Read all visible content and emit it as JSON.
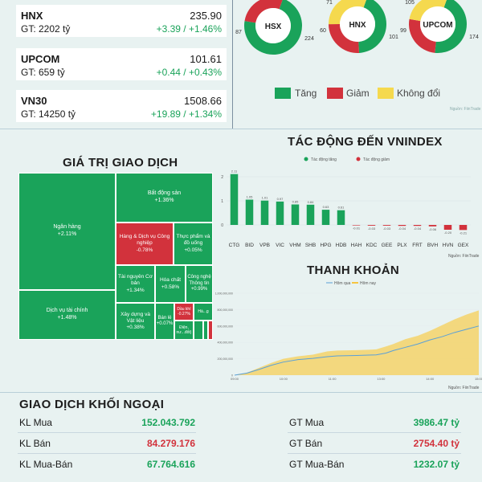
{
  "indices": [
    {
      "name": "HNX",
      "gt": "GT: 2202 tỷ",
      "value": "235.90",
      "change": "+3.39 / +1.46%"
    },
    {
      "name": "UPCOM",
      "gt": "GT: 659 tỷ",
      "value": "101.61",
      "change": "+0.44 / +0.43%"
    },
    {
      "name": "VN30",
      "gt": "GT: 14250 tỷ",
      "value": "1508.66",
      "change": "+19.89 / +1.34%"
    }
  ],
  "donuts": [
    {
      "label": "HSX",
      "up": 224,
      "down": 87,
      "flat": 0,
      "up_label": "224",
      "down_label": "87",
      "flat_label": ""
    },
    {
      "label": "HNX",
      "up": 101,
      "down": 60,
      "flat": 71,
      "up_label": "101",
      "down_label": "60",
      "flat_label": "71"
    },
    {
      "label": "UPCOM",
      "up": 174,
      "down": 99,
      "flat": 105,
      "up_label": "174",
      "down_label": "99",
      "flat_label": "105"
    }
  ],
  "donut_legend": {
    "up": "Tăng",
    "down": "Giảm",
    "flat": "Không đổi"
  },
  "source_text": "Nguồn: FiinTrade",
  "colors": {
    "up": "#1aa35a",
    "down": "#d2323c",
    "flat": "#f5d94e",
    "bg": "#e8f2f1"
  },
  "treemap": {
    "title": "GIÁ TRỊ GIAO DỊCH",
    "cells": [
      {
        "name": "Ngân hàng",
        "change": "+2.11%",
        "color": "#1aa35a"
      },
      {
        "name": "Dịch vụ tài chính",
        "change": "+1.48%",
        "color": "#1aa35a"
      },
      {
        "name": "Bất động sản",
        "change": "+1.36%",
        "color": "#1aa35a"
      },
      {
        "name": "Hàng & Dịch vụ Công nghiệp",
        "change": "-0.78%",
        "color": "#d2323c"
      },
      {
        "name": "Thực phẩm và đồ uống",
        "change": "+0.05%",
        "color": "#1aa35a"
      },
      {
        "name": "Tài nguyên Cơ bản",
        "change": "+1.34%",
        "color": "#1aa35a"
      },
      {
        "name": "Hóa chất",
        "change": "+0.58%",
        "color": "#1aa35a"
      },
      {
        "name": "Công nghệ Thông tin",
        "change": "+0.99%",
        "color": "#1aa35a"
      },
      {
        "name": "Xây dựng và Vật liệu",
        "change": "+0.38%",
        "color": "#1aa35a"
      },
      {
        "name": "Bán lẻ",
        "change": "+0.07%",
        "color": "#1aa35a"
      },
      {
        "name": "Dầu khí",
        "change": "-0.27%",
        "color": "#d2323c"
      },
      {
        "name": "Hà...g",
        "change": "",
        "color": "#1aa35a"
      },
      {
        "name": "Điện, nư...đốt)",
        "change": "",
        "color": "#1aa35a"
      },
      {
        "name": "",
        "change": "",
        "color": "#1aa35a"
      },
      {
        "name": "",
        "change": "",
        "color": "#1aa35a"
      },
      {
        "name": "",
        "change": "",
        "color": "#d2323c"
      }
    ]
  },
  "chart_data": [
    {
      "type": "bar",
      "title": "TÁC ĐỘNG ĐẾN VNINDEX",
      "legend": [
        "Tác động tăng",
        "Tác động giảm"
      ],
      "categories": [
        "CTG",
        "BID",
        "VPB",
        "VIC",
        "VHM",
        "SHB",
        "HPG",
        "HDB",
        "HAH",
        "KDC",
        "GEE",
        "PLX",
        "FRT",
        "BVH",
        "HVN",
        "GEX"
      ],
      "values": [
        2.11,
        1.05,
        1.01,
        0.97,
        0.85,
        0.84,
        0.63,
        0.61,
        -0.01,
        -0.03,
        -0.03,
        -0.04,
        -0.04,
        -0.06,
        -0.2,
        -0.21
      ],
      "value_labels": [
        "2.11",
        "1.05",
        "1.01",
        "0.97",
        "0.85",
        "0.84",
        "0.63",
        "0.61",
        "-0.01",
        "-0.03",
        "-0.03",
        "-0.04",
        "-0.04",
        "-0.06",
        "-0.20",
        "-0.21"
      ],
      "yticks": [
        "0",
        "1",
        "2"
      ],
      "ylim": [
        -0.4,
        2.3
      ]
    },
    {
      "type": "area",
      "title": "THANH KHOẢN",
      "legend": [
        "Hôm qua",
        "Hôm nay"
      ],
      "xticks": [
        "09:00",
        "10:00",
        "11:00",
        "13:00",
        "14:00",
        "15:00"
      ],
      "yticks": [
        "0",
        "200,000,000",
        "400,000,000",
        "600,000,000",
        "800,000,000",
        "1,000,000,000"
      ],
      "ylim": [
        0,
        1000000000
      ],
      "today": [
        [
          0,
          0
        ],
        [
          0.05,
          30000000
        ],
        [
          0.1,
          90000000
        ],
        [
          0.15,
          150000000
        ],
        [
          0.2,
          200000000
        ],
        [
          0.26,
          230000000
        ],
        [
          0.32,
          250000000
        ],
        [
          0.38,
          290000000
        ],
        [
          0.42,
          300000000
        ],
        [
          0.5,
          305000000
        ],
        [
          0.55,
          310000000
        ],
        [
          0.58,
          315000000
        ],
        [
          0.62,
          350000000
        ],
        [
          0.65,
          380000000
        ],
        [
          0.7,
          440000000
        ],
        [
          0.75,
          480000000
        ],
        [
          0.8,
          540000000
        ],
        [
          0.85,
          610000000
        ],
        [
          0.9,
          680000000
        ],
        [
          0.95,
          740000000
        ],
        [
          1.0,
          790000000
        ]
      ],
      "yesterday": [
        [
          0,
          0
        ],
        [
          0.05,
          25000000
        ],
        [
          0.1,
          70000000
        ],
        [
          0.15,
          120000000
        ],
        [
          0.2,
          160000000
        ],
        [
          0.26,
          190000000
        ],
        [
          0.32,
          205000000
        ],
        [
          0.38,
          225000000
        ],
        [
          0.42,
          235000000
        ],
        [
          0.5,
          240000000
        ],
        [
          0.55,
          245000000
        ],
        [
          0.58,
          248000000
        ],
        [
          0.62,
          270000000
        ],
        [
          0.65,
          300000000
        ],
        [
          0.7,
          340000000
        ],
        [
          0.75,
          380000000
        ],
        [
          0.8,
          430000000
        ],
        [
          0.85,
          470000000
        ],
        [
          0.9,
          520000000
        ],
        [
          0.95,
          560000000
        ],
        [
          1.0,
          600000000
        ]
      ]
    }
  ],
  "foreign": {
    "title": "GIAO DỊCH KHỐI NGOẠI",
    "rows": [
      {
        "label": "KL Mua",
        "value": "152.043.792",
        "glabel": "GT Mua",
        "gvalue": "3986.47 tỷ",
        "color": "up"
      },
      {
        "label": "KL Bán",
        "value": "84.279.176",
        "glabel": "GT Bán",
        "gvalue": "2754.40 tỷ",
        "color": "down"
      },
      {
        "label": "KL Mua-Bán",
        "value": "67.764.616",
        "glabel": "GT Mua-Bán",
        "gvalue": "1232.07 tỷ",
        "color": "up"
      }
    ]
  }
}
